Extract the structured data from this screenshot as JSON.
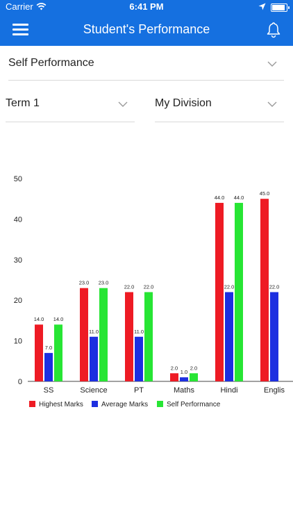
{
  "status_bar": {
    "carrier": "Carrier",
    "time": "6:41 PM",
    "battery_level": 0.92
  },
  "header": {
    "title": "Student's Performance",
    "menu_icon": "hamburger-menu-icon",
    "notification_icon": "bell-icon"
  },
  "filters": {
    "performance_type": "Self Performance",
    "term": "Term 1",
    "division": "My Division"
  },
  "colors": {
    "header": "#1570e0",
    "highest": "#ee1b24",
    "average": "#1d2fe0",
    "self": "#27e534"
  },
  "chart_data": {
    "type": "bar",
    "categories": [
      "SS",
      "Science",
      "PT",
      "Maths",
      "Hindi",
      "Englis"
    ],
    "y_ticks": [
      "0",
      "10",
      "20",
      "30",
      "40",
      "50"
    ],
    "ylim": [
      0,
      50
    ],
    "legend_position": "bottom-left",
    "series": [
      {
        "name": "Highest Marks",
        "values": [
          14.0,
          23.0,
          22.0,
          2.0,
          44.0,
          45.0
        ],
        "labels": [
          "14.0",
          "23.0",
          "22.0",
          "2.0",
          "44.0",
          "45.0"
        ]
      },
      {
        "name": "Average Marks",
        "values": [
          7.0,
          11.0,
          11.0,
          1.0,
          22.0,
          22.0
        ],
        "labels": [
          "7.0",
          "11.0",
          "11.0",
          "1.0",
          "22.0",
          "22.0"
        ]
      },
      {
        "name": "Self Performance",
        "values": [
          14.0,
          23.0,
          22.0,
          2.0,
          44.0,
          null
        ],
        "labels": [
          "14.0",
          "23.0",
          "22.0",
          "2.0",
          "44.0",
          ""
        ]
      }
    ]
  }
}
